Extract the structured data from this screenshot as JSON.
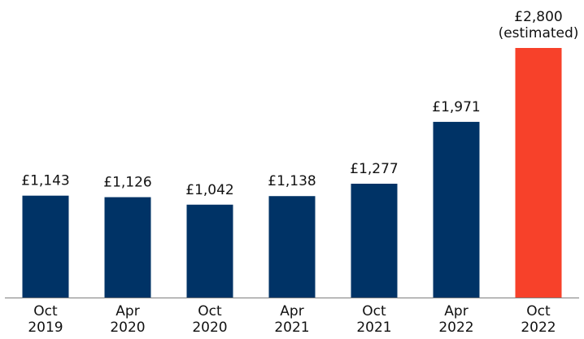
{
  "chart_data": {
    "type": "bar",
    "categories": [
      [
        "Oct",
        "2019"
      ],
      [
        "Apr",
        "2020"
      ],
      [
        "Oct",
        "2020"
      ],
      [
        "Apr",
        "2021"
      ],
      [
        "Oct",
        "2021"
      ],
      [
        "Apr",
        "2022"
      ],
      [
        "Oct",
        "2022"
      ]
    ],
    "values": [
      1143,
      1126,
      1042,
      1138,
      1277,
      1971,
      2800
    ],
    "data_labels": [
      [
        "£1,143"
      ],
      [
        "£1,126"
      ],
      [
        "£1,042"
      ],
      [
        "£1,138"
      ],
      [
        "£1,277"
      ],
      [
        "£1,971"
      ],
      [
        "£2,800",
        "(estimated)"
      ]
    ],
    "bar_colors": [
      "#003366",
      "#003366",
      "#003366",
      "#003366",
      "#003366",
      "#003366",
      "#f7412a"
    ],
    "title": "",
    "xlabel": "",
    "ylabel": "",
    "ylim": [
      0,
      2800
    ],
    "grid": false,
    "legend": "none",
    "colors": {
      "primary_bar": "#003366",
      "highlight_bar": "#f7412a",
      "baseline": "#7f7f7f",
      "text": "#111111"
    }
  }
}
